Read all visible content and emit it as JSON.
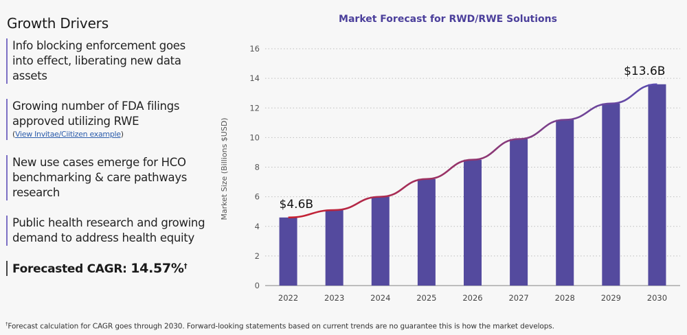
{
  "left_panel": {
    "title": "Growth Drivers",
    "drivers": [
      {
        "text": "Info blocking enforcement goes into effect, liberating new data assets"
      },
      {
        "text": "Growing number of FDA filings approved utilizing RWE",
        "link_open": "(",
        "link_text": "View Invitae/Ciitizen example",
        "link_close": ")"
      },
      {
        "text": "New use cases emerge for HCO benchmarking & care pathways research"
      },
      {
        "text": "Public health research and growing demand to address health equity"
      }
    ],
    "cagr_label": "Forecasted CAGR: ",
    "cagr_value": "14.57%",
    "cagr_mark": "†"
  },
  "footnote": {
    "mark": "†",
    "text": "Forecast calculation for CAGR goes through 2030. Forward-looking statements based on current trends are no guarantee this is how the market develops."
  },
  "colors": {
    "bar": "#544a9e",
    "title": "#4b3f9b",
    "trend_start": "#c8202f",
    "trend_end": "#5a4cb0",
    "accent_border": "#7b6fc4"
  },
  "chart_data": {
    "type": "bar",
    "title": "Market Forecast for RWD/RWE Solutions",
    "xlabel": "",
    "ylabel": "Market Size (Billions $USD)",
    "categories": [
      "2022",
      "2023",
      "2024",
      "2025",
      "2026",
      "2027",
      "2028",
      "2029",
      "2030"
    ],
    "values": [
      4.6,
      5.1,
      6.0,
      7.2,
      8.5,
      9.9,
      11.2,
      12.3,
      13.6
    ],
    "ylim": [
      0,
      16
    ],
    "yticks": [
      0,
      2,
      4,
      6,
      8,
      10,
      12,
      14,
      16
    ],
    "grid": true,
    "trend_line": true,
    "annotations": [
      {
        "category": "2022",
        "text": "$4.6B"
      },
      {
        "category": "2030",
        "text": "$13.6B"
      }
    ]
  }
}
